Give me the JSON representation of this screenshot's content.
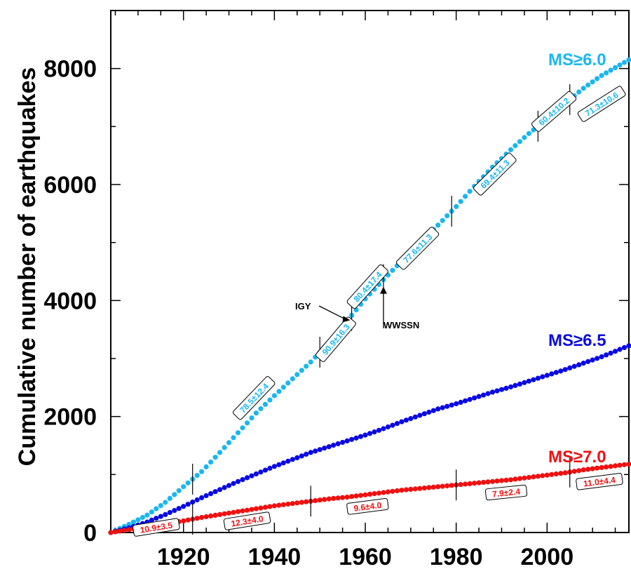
{
  "chart_data": {
    "type": "scatter",
    "title": "",
    "xlabel": "",
    "ylabel": "Cumulative number of earthquakes",
    "xlim": [
      1904,
      2018
    ],
    "ylim": [
      0,
      9000
    ],
    "x_ticks": [
      "1920",
      "1940",
      "1960",
      "1980",
      "2000"
    ],
    "x_tick_values": [
      1920,
      1940,
      1960,
      1980,
      2000
    ],
    "y_ticks": [
      "0",
      "2000",
      "4000",
      "6000",
      "8000"
    ],
    "y_tick_values": [
      0,
      2000,
      4000,
      6000,
      8000
    ],
    "grid": false,
    "series": [
      {
        "name": "MS≥6.0",
        "color": "#1ab6f0",
        "points": [
          [
            1904,
            0
          ],
          [
            1908,
            140
          ],
          [
            1912,
            300
          ],
          [
            1916,
            520
          ],
          [
            1920,
            790
          ],
          [
            1924,
            1050
          ],
          [
            1928,
            1380
          ],
          [
            1932,
            1720
          ],
          [
            1936,
            2060
          ],
          [
            1940,
            2360
          ],
          [
            1944,
            2650
          ],
          [
            1948,
            2940
          ],
          [
            1952,
            3280
          ],
          [
            1956,
            3650
          ],
          [
            1960,
            4030
          ],
          [
            1964,
            4360
          ],
          [
            1968,
            4680
          ],
          [
            1972,
            5000
          ],
          [
            1976,
            5300
          ],
          [
            1980,
            5620
          ],
          [
            1984,
            5970
          ],
          [
            1988,
            6300
          ],
          [
            1992,
            6600
          ],
          [
            1996,
            6880
          ],
          [
            2000,
            7130
          ],
          [
            2004,
            7400
          ],
          [
            2008,
            7660
          ],
          [
            2012,
            7880
          ],
          [
            2018,
            8150
          ]
        ],
        "breaks": [
          1922,
          1950,
          1957,
          1964,
          1979,
          1998,
          2005
        ],
        "rates": [
          {
            "text": "78.5±12.4",
            "x": 1935.5,
            "y": 2320
          },
          {
            "text": "90.9±16.3",
            "x": 1953.5,
            "y": 3330
          },
          {
            "text": "80.4±17.4",
            "x": 1960.5,
            "y": 4240
          },
          {
            "text": "77.6±11.3",
            "x": 1971.5,
            "y": 4900
          },
          {
            "text": "69.4±11.3",
            "x": 1988.5,
            "y": 6180
          },
          {
            "text": "60.4±10.2",
            "x": 2001.5,
            "y": 7260
          },
          {
            "text": "71.3±10.6",
            "x": 2012,
            "y": 7390
          }
        ]
      },
      {
        "name": "MS≥6.5",
        "color": "#0a0ae0",
        "points": [
          [
            1904,
            0
          ],
          [
            1908,
            80
          ],
          [
            1912,
            180
          ],
          [
            1916,
            310
          ],
          [
            1920,
            450
          ],
          [
            1924,
            600
          ],
          [
            1928,
            740
          ],
          [
            1932,
            880
          ],
          [
            1936,
            1010
          ],
          [
            1940,
            1140
          ],
          [
            1944,
            1260
          ],
          [
            1948,
            1380
          ],
          [
            1952,
            1480
          ],
          [
            1956,
            1580
          ],
          [
            1960,
            1680
          ],
          [
            1964,
            1790
          ],
          [
            1968,
            1910
          ],
          [
            1972,
            2020
          ],
          [
            1976,
            2130
          ],
          [
            1980,
            2220
          ],
          [
            1984,
            2320
          ],
          [
            1988,
            2420
          ],
          [
            1992,
            2510
          ],
          [
            1996,
            2610
          ],
          [
            2000,
            2710
          ],
          [
            2004,
            2810
          ],
          [
            2008,
            2920
          ],
          [
            2012,
            3030
          ],
          [
            2018,
            3220
          ]
        ],
        "breaks": [],
        "rates": []
      },
      {
        "name": "MS≥7.0",
        "color": "#ee1111",
        "points": [
          [
            1904,
            0
          ],
          [
            1908,
            50
          ],
          [
            1912,
            100
          ],
          [
            1916,
            150
          ],
          [
            1920,
            200
          ],
          [
            1924,
            260
          ],
          [
            1928,
            310
          ],
          [
            1932,
            360
          ],
          [
            1936,
            410
          ],
          [
            1940,
            460
          ],
          [
            1944,
            500
          ],
          [
            1948,
            540
          ],
          [
            1952,
            580
          ],
          [
            1956,
            610
          ],
          [
            1960,
            650
          ],
          [
            1964,
            690
          ],
          [
            1968,
            730
          ],
          [
            1972,
            760
          ],
          [
            1976,
            790
          ],
          [
            1980,
            820
          ],
          [
            1984,
            850
          ],
          [
            1988,
            880
          ],
          [
            1992,
            910
          ],
          [
            1996,
            950
          ],
          [
            2000,
            990
          ],
          [
            2004,
            1030
          ],
          [
            2008,
            1080
          ],
          [
            2012,
            1120
          ],
          [
            2018,
            1180
          ]
        ],
        "breaks": [
          1922,
          1948,
          1980,
          2005
        ],
        "rates": [
          {
            "text": "10.9±3.5",
            "x": 1914,
            "y": 90
          },
          {
            "text": "12.3±4.0",
            "x": 1934,
            "y": 200
          },
          {
            "text": "9.6±4.0",
            "x": 1960.5,
            "y": 450
          },
          {
            "text": "7.9±2.4",
            "x": 1991,
            "y": 690
          },
          {
            "text": "11.0±4.4",
            "x": 2011.5,
            "y": 880
          }
        ]
      }
    ],
    "annotations": [
      {
        "text": "IGY",
        "x": 1957
      },
      {
        "text": "WWSSN",
        "x": 1964
      }
    ]
  }
}
